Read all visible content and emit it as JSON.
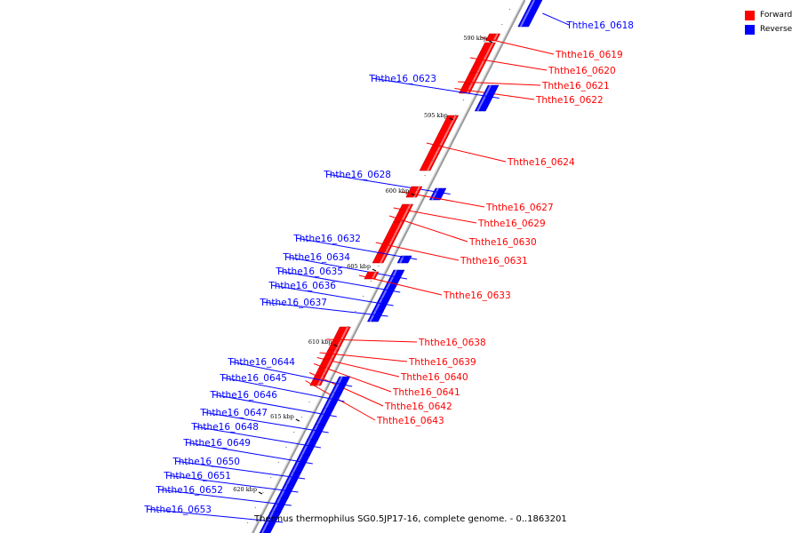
{
  "legend": {
    "forward_label": "Forward",
    "reverse_label": "Reverse",
    "forward_color": "#ff0000",
    "reverse_color": "#0000ff"
  },
  "caption": "Thermus thermophilus SG0.5JP17-16, complete genome. - 0..1863201",
  "scale_labels": [
    "590 kbp",
    "595 kbp",
    "600 kbp",
    "605 kbp",
    "610 kbp",
    "615 kbp",
    "620 kbp"
  ],
  "genes": [
    {
      "label": "Ththe16_0618",
      "strand": "reverse"
    },
    {
      "label": "Ththe16_0619",
      "strand": "forward"
    },
    {
      "label": "Ththe16_0620",
      "strand": "forward"
    },
    {
      "label": "Ththe16_0621",
      "strand": "forward"
    },
    {
      "label": "Ththe16_0622",
      "strand": "forward"
    },
    {
      "label": "Ththe16_0623",
      "strand": "reverse"
    },
    {
      "label": "Ththe16_0624",
      "strand": "forward"
    },
    {
      "label": "Ththe16_0628",
      "strand": "reverse"
    },
    {
      "label": "Ththe16_0627",
      "strand": "forward"
    },
    {
      "label": "Ththe16_0629",
      "strand": "forward"
    },
    {
      "label": "Ththe16_0630",
      "strand": "forward"
    },
    {
      "label": "Ththe16_0631",
      "strand": "forward"
    },
    {
      "label": "Ththe16_0632",
      "strand": "reverse"
    },
    {
      "label": "Ththe16_0634",
      "strand": "reverse"
    },
    {
      "label": "Ththe16_0635",
      "strand": "reverse"
    },
    {
      "label": "Ththe16_0636",
      "strand": "reverse"
    },
    {
      "label": "Ththe16_0637",
      "strand": "reverse"
    },
    {
      "label": "Ththe16_0633",
      "strand": "forward"
    },
    {
      "label": "Ththe16_0638",
      "strand": "forward"
    },
    {
      "label": "Ththe16_0639",
      "strand": "forward"
    },
    {
      "label": "Ththe16_0640",
      "strand": "forward"
    },
    {
      "label": "Ththe16_0641",
      "strand": "forward"
    },
    {
      "label": "Ththe16_0642",
      "strand": "forward"
    },
    {
      "label": "Ththe16_0643",
      "strand": "forward"
    },
    {
      "label": "Ththe16_0644",
      "strand": "reverse"
    },
    {
      "label": "Ththe16_0645",
      "strand": "reverse"
    },
    {
      "label": "Ththe16_0646",
      "strand": "reverse"
    },
    {
      "label": "Ththe16_0647",
      "strand": "reverse"
    },
    {
      "label": "Ththe16_0648",
      "strand": "reverse"
    },
    {
      "label": "Ththe16_0649",
      "strand": "reverse"
    },
    {
      "label": "Ththe16_0650",
      "strand": "reverse"
    },
    {
      "label": "Ththe16_0651",
      "strand": "reverse"
    },
    {
      "label": "Ththe16_0652",
      "strand": "reverse"
    },
    {
      "label": "Ththe16_0653",
      "strand": "reverse"
    }
  ]
}
